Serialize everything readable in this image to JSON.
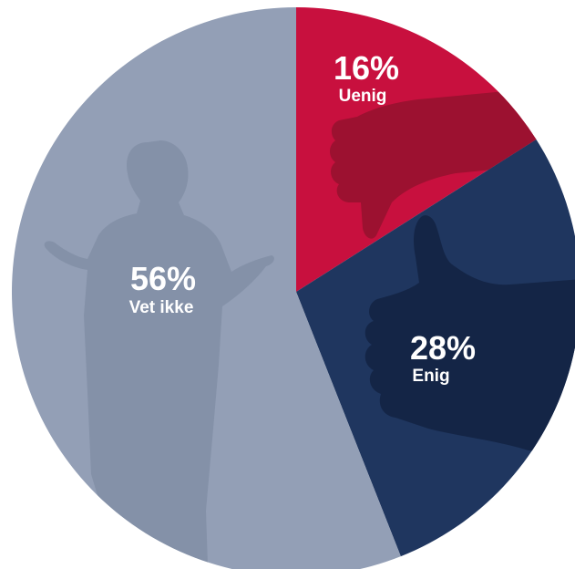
{
  "chart_data": {
    "type": "pie",
    "slices": [
      {
        "label": "Uenig",
        "value": 16,
        "value_label": "16%",
        "color": "#c8103e",
        "icon": "thumbs-down-icon"
      },
      {
        "label": "Enig",
        "value": 28,
        "value_label": "28%",
        "color": "#1f365f",
        "icon": "thumbs-up-icon"
      },
      {
        "label": "Vet ikke",
        "value": 56,
        "value_label": "56%",
        "color": "#939fb6",
        "icon": "shrugging-person-icon"
      }
    ],
    "start_angle_deg": 0,
    "direction": "clockwise",
    "legend": "none"
  }
}
